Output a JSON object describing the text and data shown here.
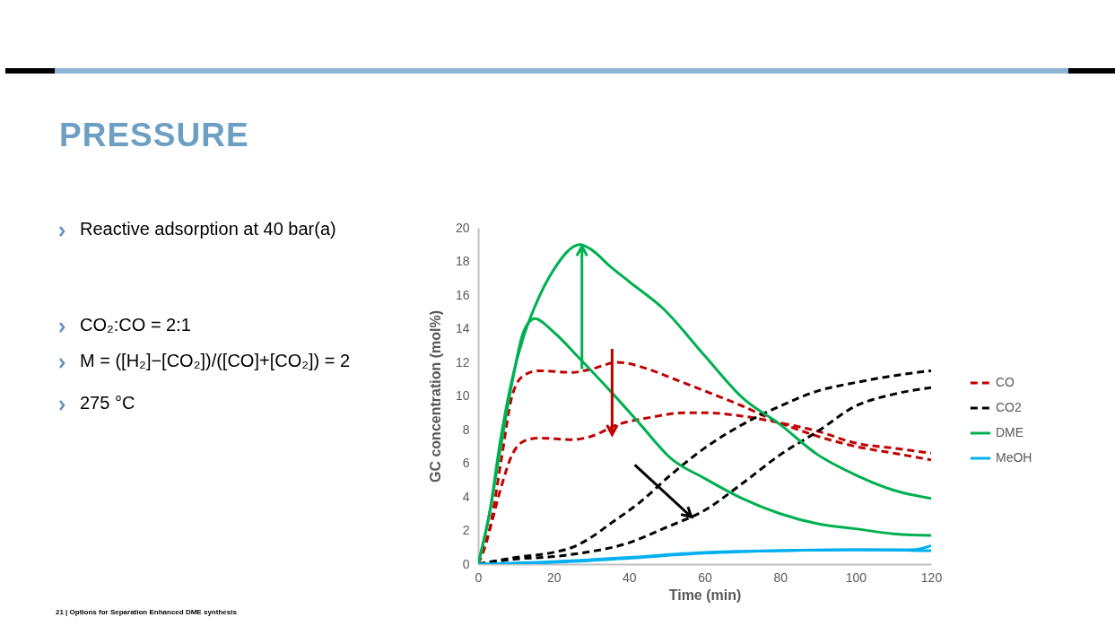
{
  "chart_data": {
    "type": "line",
    "title": "PRESSURE",
    "xlabel": "Time (min)",
    "ylabel": "GC concentration (mol%)",
    "xlim": [
      0,
      120
    ],
    "xticks": [
      0,
      20,
      40,
      60,
      80,
      100,
      120
    ],
    "ylim": [
      0,
      20
    ],
    "yticks": [
      0,
      2,
      4,
      6,
      8,
      10,
      12,
      14,
      16,
      18,
      20
    ],
    "legend": "right",
    "grid": false,
    "annotations": [
      "Reactive adsorption at 40 bar(a)",
      "CO₂:CO = 2:1",
      "M = ([H₂]−[CO₂])/([CO]+[CO₂]) = 2",
      "275 °C",
      "21 | Options for Separation Enhanced DME synthesis"
    ],
    "series": [
      {
        "name": "CO",
        "color": "#c00000",
        "line_style": "dashed",
        "x": [
          0,
          3,
          6,
          9,
          12,
          16,
          25,
          30,
          37,
          45,
          52,
          60,
          70,
          80,
          90,
          100,
          110,
          120
        ],
        "values": [
          0,
          2,
          6,
          10,
          11.2,
          11.5,
          11.4,
          11.6,
          12.0,
          11.6,
          11.0,
          10.3,
          9.4,
          8.4,
          7.6,
          7.0,
          6.6,
          6.2
        ]
      },
      {
        "color": "#c00000",
        "line_style": "dashed",
        "x": [
          0,
          3,
          6,
          9,
          12,
          16,
          25,
          30,
          37,
          45,
          55,
          60,
          70,
          80,
          90,
          100,
          110,
          120
        ],
        "values": [
          0,
          2,
          4.5,
          6.5,
          7.3,
          7.5,
          7.4,
          7.6,
          8.3,
          8.7,
          9.0,
          9.0,
          8.8,
          8.4,
          7.9,
          7.2,
          6.9,
          6.6
        ]
      },
      {
        "name": "CO2",
        "color": "#000000",
        "line_style": "dashed",
        "x": [
          0,
          10,
          20,
          25,
          30,
          35,
          43,
          51,
          60,
          70,
          80,
          90,
          100,
          110,
          120
        ],
        "values": [
          0,
          0.4,
          0.7,
          1.0,
          1.6,
          2.4,
          3.7,
          5.3,
          6.9,
          8.3,
          9.4,
          10.3,
          10.8,
          11.2,
          11.5
        ]
      },
      {
        "color": "#000000",
        "line_style": "dashed",
        "x": [
          0,
          10,
          20,
          27,
          39,
          50,
          60,
          70,
          80,
          90,
          100,
          110,
          120
        ],
        "values": [
          0,
          0.3,
          0.45,
          0.65,
          1.2,
          2.2,
          3.2,
          4.8,
          6.5,
          7.9,
          9.4,
          10.1,
          10.5
        ]
      },
      {
        "name": "DME",
        "color": "#00b050",
        "line_style": "solid",
        "x": [
          0,
          3,
          6,
          9,
          12,
          15,
          20,
          27,
          30,
          35,
          40,
          49,
          60,
          70,
          80,
          90,
          100,
          110,
          120
        ],
        "values": [
          0,
          3,
          7.5,
          11,
          13.5,
          15.3,
          17.5,
          19.0,
          18.7,
          17.7,
          16.8,
          15.2,
          12.4,
          9.9,
          8.3,
          6.5,
          5.3,
          4.4,
          3.9
        ]
      },
      {
        "color": "#00b050",
        "line_style": "solid",
        "x": [
          0,
          3,
          6,
          9,
          12,
          15,
          20,
          27,
          35,
          43,
          51,
          60,
          70,
          80,
          90,
          100,
          110,
          120
        ],
        "values": [
          0,
          3,
          7,
          10.8,
          13.8,
          14.6,
          13.8,
          12.2,
          10.3,
          8.3,
          6.3,
          5.1,
          3.9,
          3.0,
          2.4,
          2.1,
          1.8,
          1.7
        ]
      },
      {
        "name": "MeOH",
        "color": "#00b0f0",
        "line_style": "solid",
        "x": [
          0,
          20,
          40,
          60,
          80,
          100,
          115,
          120
        ],
        "values": [
          0,
          0.15,
          0.4,
          0.7,
          0.8,
          0.85,
          0.85,
          1.1
        ]
      },
      {
        "color": "#00b0f0",
        "line_style": "solid",
        "x": [
          0,
          20,
          40,
          60,
          80,
          100,
          120
        ],
        "values": [
          0,
          0.1,
          0.35,
          0.65,
          0.8,
          0.85,
          0.8
        ]
      }
    ]
  }
}
